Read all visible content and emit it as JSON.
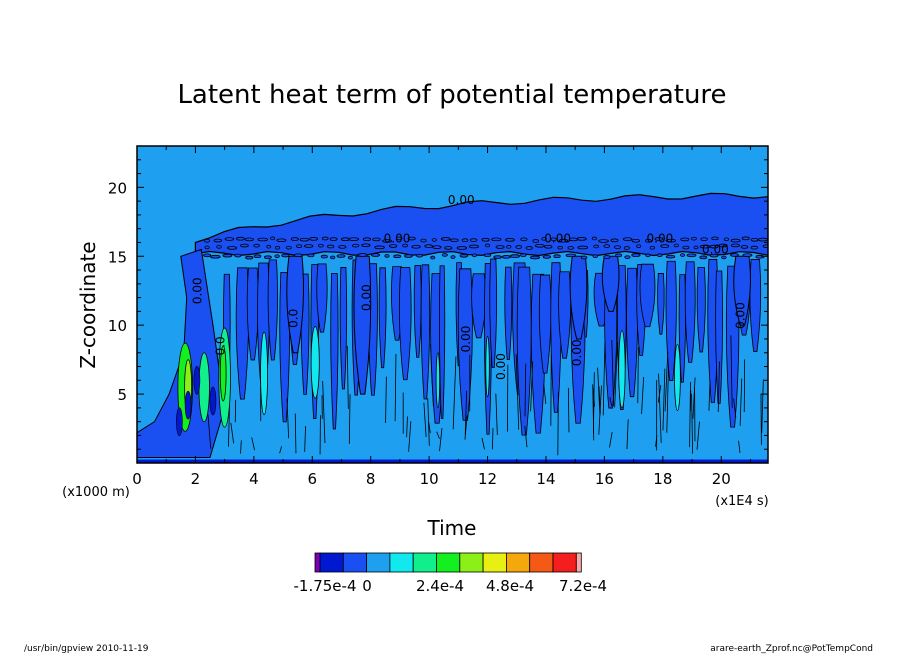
{
  "chart_data": {
    "type": "heatmap",
    "title": "Latent heat term of potential temperature",
    "xlabel": "Time",
    "ylabel": "Z-coordinate",
    "x_unit": "(x1E4 s)",
    "y_unit": "(x1000 m)",
    "xlim": [
      0,
      21.6
    ],
    "ylim": [
      0,
      23
    ],
    "x_ticks": [
      "0",
      "2",
      "4",
      "6",
      "8",
      "10",
      "12",
      "14",
      "16",
      "18",
      "20"
    ],
    "y_ticks": [
      "5",
      "10",
      "15",
      "20"
    ],
    "contour_labels": [
      "0.00",
      "0.00",
      "0.00",
      "0.00",
      "0.00",
      "0.0",
      "0.0",
      "0.00",
      "0.00",
      "0.00",
      "0.00",
      "0.00",
      "0.00"
    ],
    "colorbar": {
      "colors": [
        "#7b00b4",
        "#0018d0",
        "#1a4ff2",
        "#1e9fef",
        "#12e9ef",
        "#10ef8c",
        "#14ef20",
        "#8cef18",
        "#e8ef12",
        "#f4a80e",
        "#f45a16",
        "#f41e1e",
        "#fca8a8"
      ],
      "tick_labels": [
        "-1.75e-4",
        "0",
        "2.4e-4",
        "4.8e-4",
        "7.2e-4"
      ]
    }
  },
  "footer": {
    "left": "/usr/bin/gpview   2010-11-19",
    "right": "arare-earth_Zprof.nc@PotTempCond"
  }
}
